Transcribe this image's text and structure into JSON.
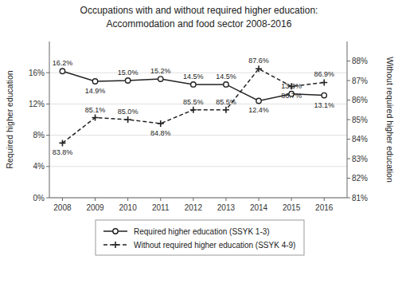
{
  "chart_data": {
    "type": "line",
    "title": "Occupations with and without required higher education:",
    "subtitle": "Accommodation and food sector 2008-2016",
    "x": [
      2008,
      2009,
      2010,
      2011,
      2012,
      2013,
      2014,
      2015,
      2016
    ],
    "xlim": [
      2007.6,
      2016.7
    ],
    "xticks": [
      2008,
      2009,
      2010,
      2011,
      2012,
      2013,
      2014,
      2015,
      2016
    ],
    "ylim": [
      0,
      20
    ],
    "yticks": [
      {
        "value": 0,
        "label": "0%"
      },
      {
        "value": 4,
        "label": "4%"
      },
      {
        "value": 8,
        "label": "8%"
      },
      {
        "value": 12,
        "label": "12%"
      },
      {
        "value": 16,
        "label": "16%"
      }
    ],
    "y2lim": [
      81,
      89
    ],
    "y2ticks": [
      {
        "value": 81,
        "label": "81%"
      },
      {
        "value": 82,
        "label": "82%"
      },
      {
        "value": 83,
        "label": "83%"
      },
      {
        "value": 84,
        "label": "84%"
      },
      {
        "value": 85,
        "label": "85%"
      },
      {
        "value": 86,
        "label": "86%"
      },
      {
        "value": 87,
        "label": "87%"
      },
      {
        "value": 88,
        "label": "88%"
      }
    ],
    "y_label": "Required higher education",
    "y2_label": "Without required higher education",
    "grid": true,
    "legend": "bottom",
    "data_labels": true,
    "series": [
      {
        "name": "Required higher education (SSYK 1-3)",
        "color": "#222222",
        "marker": "circle",
        "line_style": "solid",
        "values": [
          16.2,
          14.9,
          15.0,
          15.2,
          14.5,
          14.5,
          12.4,
          13.3,
          13.1
        ],
        "value_labels": [
          "16.2%",
          "14.9%",
          "15.0%",
          "15.2%",
          "14.5%",
          "14.5%",
          "12.4%",
          "13.3%",
          "13.1%"
        ]
      },
      {
        "name": "Without required higher education (SSYK 4-9)",
        "color": "#222222",
        "marker": "plus",
        "line_style": "dashed",
        "axis": "y2",
        "values": [
          83.8,
          85.1,
          85.0,
          84.8,
          85.5,
          85.5,
          87.6,
          86.7,
          86.9
        ],
        "value_labels": [
          "83.8%",
          "85.1%",
          "85.0%",
          "84.8%",
          "85.5%",
          "85.5%",
          "87.6%",
          "86.7%",
          "86.9%"
        ]
      }
    ]
  }
}
